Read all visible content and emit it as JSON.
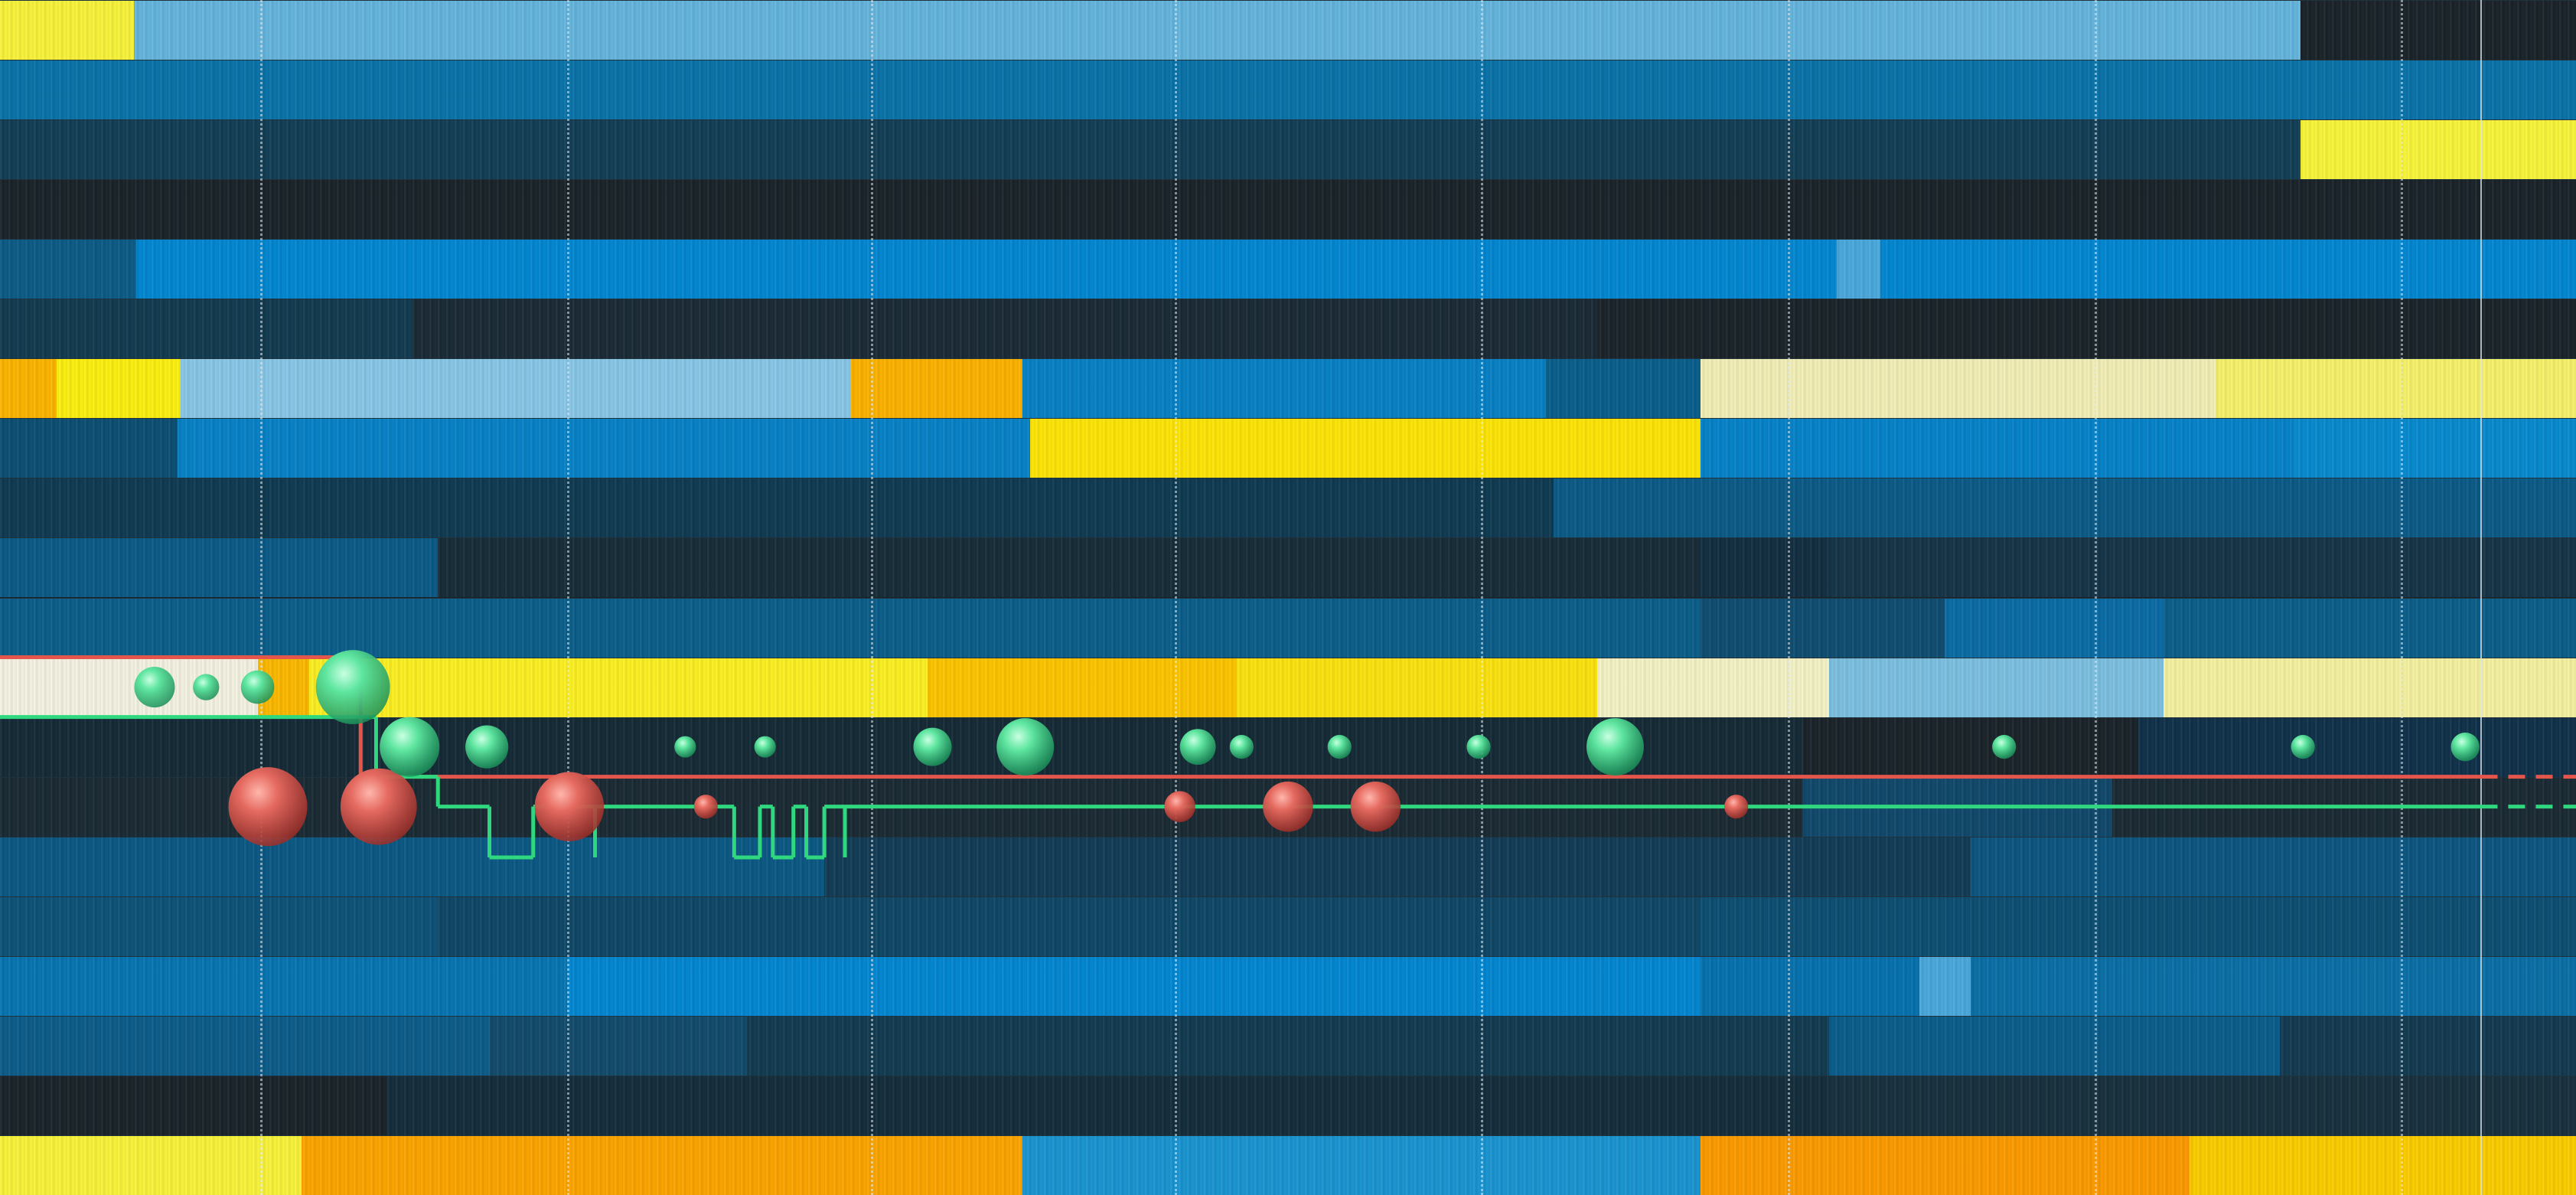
{
  "heatmap": {
    "rows": [
      {
        "id": "r1",
        "segs": [
          [
            0,
            0.052,
            "#f7f23a"
          ],
          [
            0.052,
            0.893,
            "#64b4dc"
          ],
          [
            0.893,
            1,
            "#1a2329"
          ]
        ]
      },
      {
        "id": "r2",
        "segs": [
          [
            0,
            1,
            "#0a72a8"
          ]
        ]
      },
      {
        "id": "r3",
        "segs": [
          [
            0,
            0.893,
            "#123e55"
          ],
          [
            0.893,
            1,
            "#f8f43a"
          ]
        ]
      },
      {
        "id": "r4",
        "segs": [
          [
            0,
            1,
            "#1a2329"
          ]
        ]
      },
      {
        "id": "r5",
        "segs": [
          [
            0,
            0.053,
            "#0c5b85"
          ],
          [
            0.053,
            0.713,
            "#0286d0"
          ],
          [
            0.713,
            0.73,
            "#4aa8dc"
          ],
          [
            0.73,
            1,
            "#0286d0"
          ]
        ]
      },
      {
        "id": "r6",
        "segs": [
          [
            0,
            0.16,
            "#123a4f"
          ],
          [
            0.16,
            0.62,
            "#1a2a35"
          ],
          [
            0.62,
            1,
            "#1a2329"
          ]
        ]
      },
      {
        "id": "r7",
        "segs": [
          [
            0,
            0.022,
            "#fbb400"
          ],
          [
            0.022,
            0.07,
            "#fbef10"
          ],
          [
            0.07,
            0.33,
            "#88c6e6"
          ],
          [
            0.33,
            0.397,
            "#fbb200"
          ],
          [
            0.397,
            0.6,
            "#0780c4"
          ],
          [
            0.6,
            0.66,
            "#0a5e8c"
          ],
          [
            0.66,
            0.86,
            "#f2eeb6"
          ],
          [
            0.86,
            1,
            "#f6f16a"
          ]
        ]
      },
      {
        "id": "r8",
        "segs": [
          [
            0,
            0.069,
            "#0c4e72"
          ],
          [
            0.069,
            0.4,
            "#0781c6"
          ],
          [
            0.4,
            0.66,
            "#fde407"
          ],
          [
            0.66,
            0.89,
            "#0582c8"
          ],
          [
            0.89,
            1,
            "#0789cd"
          ]
        ]
      },
      {
        "id": "r9",
        "segs": [
          [
            0,
            0.603,
            "#0f3a51"
          ],
          [
            0.603,
            1,
            "#0a5a86"
          ]
        ]
      },
      {
        "id": "r10",
        "segs": [
          [
            0,
            0.17,
            "#0a5a86"
          ],
          [
            0.17,
            0.66,
            "#172c38"
          ],
          [
            0.66,
            0.71,
            "#112e40"
          ],
          [
            0.71,
            1,
            "#153447"
          ]
        ]
      },
      {
        "id": "r11",
        "segs": [
          [
            0,
            0.17,
            "#0b5e8a"
          ],
          [
            0.17,
            0.66,
            "#0b5e8a"
          ],
          [
            0.66,
            0.755,
            "#0f4c70"
          ],
          [
            0.755,
            0.84,
            "#0a6ba4"
          ],
          [
            0.84,
            1,
            "#0b5e8a"
          ]
        ]
      },
      {
        "id": "r12",
        "segs": [
          [
            0,
            0.1,
            "#f3f1e0"
          ],
          [
            0.1,
            0.12,
            "#fbb800"
          ],
          [
            0.12,
            0.36,
            "#fbef22"
          ],
          [
            0.36,
            0.48,
            "#fcc400"
          ],
          [
            0.48,
            0.62,
            "#fbe210"
          ],
          [
            0.62,
            0.71,
            "#f3f1c4"
          ],
          [
            0.71,
            0.84,
            "#7cbfe0"
          ],
          [
            0.84,
            1,
            "#f4f0a0"
          ]
        ]
      },
      {
        "id": "r13",
        "segs": [
          [
            0,
            0.7,
            "#152a36"
          ],
          [
            0.7,
            0.83,
            "#1a2329"
          ],
          [
            0.83,
            1,
            "#10314a"
          ]
        ]
      },
      {
        "id": "r14",
        "segs": [
          [
            0,
            0.7,
            "#1a2a33"
          ],
          [
            0.7,
            0.82,
            "#10486a"
          ],
          [
            0.82,
            1,
            "#1a2a33"
          ]
        ]
      },
      {
        "id": "r15",
        "segs": [
          [
            0,
            0.32,
            "#0b5883"
          ],
          [
            0.32,
            0.765,
            "#123c55"
          ],
          [
            0.765,
            1,
            "#0c5580"
          ]
        ]
      },
      {
        "id": "r16",
        "segs": [
          [
            0,
            0.17,
            "#0d5278"
          ],
          [
            0.17,
            0.66,
            "#0f4766"
          ],
          [
            0.66,
            1,
            "#0d4e72"
          ]
        ]
      },
      {
        "id": "r17",
        "segs": [
          [
            0,
            0.22,
            "#0774b0"
          ],
          [
            0.22,
            0.66,
            "#0286d0"
          ],
          [
            0.66,
            0.745,
            "#0671ad"
          ],
          [
            0.745,
            0.765,
            "#4aa8dc"
          ],
          [
            0.765,
            1,
            "#0a6fa6"
          ]
        ]
      },
      {
        "id": "r18",
        "segs": [
          [
            0,
            0.19,
            "#0c5c89"
          ],
          [
            0.19,
            0.29,
            "#124a6b"
          ],
          [
            0.29,
            0.71,
            "#123a50"
          ],
          [
            0.71,
            0.885,
            "#0a5c8a"
          ],
          [
            0.885,
            1,
            "#133a50"
          ]
        ]
      },
      {
        "id": "r19",
        "segs": [
          [
            0,
            0.15,
            "#1a2329"
          ],
          [
            0.15,
            0.71,
            "#142d3b"
          ],
          [
            0.71,
            1,
            "#18303e"
          ]
        ]
      },
      {
        "id": "r20",
        "segs": [
          [
            0,
            0.117,
            "#f8f23a"
          ],
          [
            0.117,
            0.397,
            "#fba400"
          ],
          [
            0.397,
            0.66,
            "#1a94d0"
          ],
          [
            0.66,
            0.85,
            "#fb9a00"
          ],
          [
            0.85,
            1,
            "#fbcc00"
          ]
        ]
      }
    ],
    "gridlines": [
      0.101,
      0.22,
      0.338,
      0.456,
      0.575,
      0.694,
      0.813,
      0.932
    ],
    "cursor": 0.963
  },
  "overlay": {
    "colors": {
      "up": "#2fd87e",
      "down": "#e4564c",
      "red_line": "#e4564c",
      "green_line": "#2fd87e"
    },
    "red_trace": {
      "row": 11,
      "points": [
        [
          0,
          11
        ],
        [
          0.14,
          11
        ],
        [
          0.14,
          13
        ],
        [
          1,
          13
        ]
      ],
      "dashed_from": 0.963
    },
    "green_trace": {
      "points": [
        [
          0,
          12
        ],
        [
          0.146,
          12
        ],
        [
          0.146,
          13
        ],
        [
          0.17,
          13
        ],
        [
          0.17,
          13.5
        ],
        [
          0.19,
          13.5
        ],
        [
          0.19,
          14.35
        ],
        [
          0.207,
          14.35
        ],
        [
          0.207,
          13.5
        ],
        [
          0.231,
          13.5
        ],
        [
          0.231,
          14.35
        ],
        [
          0.231,
          13.5
        ],
        [
          0.285,
          13.5
        ],
        [
          0.285,
          14.35
        ],
        [
          0.295,
          14.35
        ],
        [
          0.295,
          13.5
        ],
        [
          0.3,
          13.5
        ],
        [
          0.3,
          14.35
        ],
        [
          0.308,
          14.35
        ],
        [
          0.308,
          13.5
        ],
        [
          0.313,
          13.5
        ],
        [
          0.313,
          14.35
        ],
        [
          0.32,
          14.35
        ],
        [
          0.32,
          13.5
        ],
        [
          0.328,
          13.5
        ],
        [
          0.328,
          14.35
        ],
        [
          0.328,
          13.5
        ],
        [
          1,
          13.5
        ]
      ],
      "dashed_from": 0.963
    },
    "up_markers": [
      {
        "x": 0.06,
        "row": 11.5,
        "r": 0.34
      },
      {
        "x": 0.08,
        "row": 11.5,
        "r": 0.22
      },
      {
        "x": 0.1,
        "row": 11.5,
        "r": 0.28
      },
      {
        "x": 0.137,
        "row": 11.5,
        "r": 0.62
      },
      {
        "x": 0.159,
        "row": 12.5,
        "r": 0.5
      },
      {
        "x": 0.189,
        "row": 12.5,
        "r": 0.36
      },
      {
        "x": 0.266,
        "row": 12.5,
        "r": 0.18
      },
      {
        "x": 0.297,
        "row": 12.5,
        "r": 0.18
      },
      {
        "x": 0.362,
        "row": 12.5,
        "r": 0.32
      },
      {
        "x": 0.398,
        "row": 12.5,
        "r": 0.48
      },
      {
        "x": 0.465,
        "row": 12.5,
        "r": 0.3
      },
      {
        "x": 0.482,
        "row": 12.5,
        "r": 0.2
      },
      {
        "x": 0.52,
        "row": 12.5,
        "r": 0.2
      },
      {
        "x": 0.574,
        "row": 12.5,
        "r": 0.2
      },
      {
        "x": 0.627,
        "row": 12.5,
        "r": 0.48
      },
      {
        "x": 0.778,
        "row": 12.5,
        "r": 0.2
      },
      {
        "x": 0.894,
        "row": 12.5,
        "r": 0.2
      },
      {
        "x": 0.957,
        "row": 12.5,
        "r": 0.24
      }
    ],
    "down_markers": [
      {
        "x": 0.104,
        "row": 13.5,
        "r": 0.66
      },
      {
        "x": 0.147,
        "row": 13.5,
        "r": 0.64
      },
      {
        "x": 0.221,
        "row": 13.5,
        "r": 0.58
      },
      {
        "x": 0.274,
        "row": 13.5,
        "r": 0.2
      },
      {
        "x": 0.458,
        "row": 13.5,
        "r": 0.26
      },
      {
        "x": 0.5,
        "row": 13.5,
        "r": 0.42
      },
      {
        "x": 0.534,
        "row": 13.5,
        "r": 0.42
      },
      {
        "x": 0.674,
        "row": 13.5,
        "r": 0.2
      }
    ]
  }
}
